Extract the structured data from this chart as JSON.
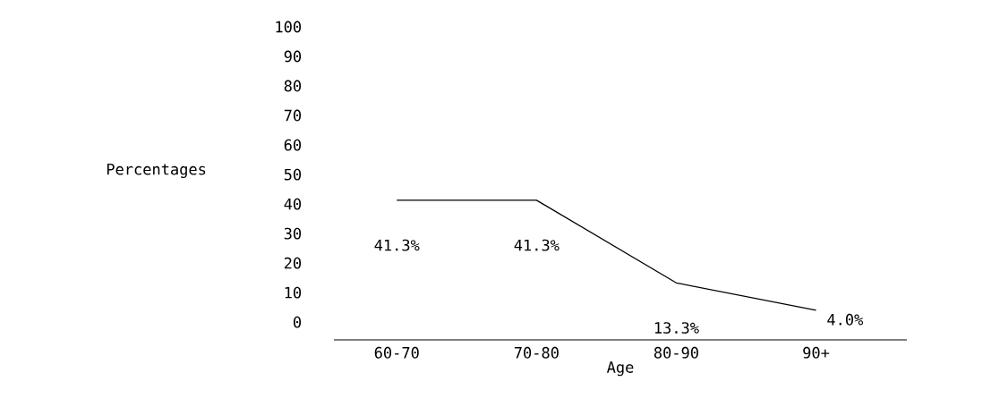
{
  "chart_data": {
    "type": "line",
    "xlabel": "Age",
    "ylabel": "Percentages",
    "categories": [
      "60-70",
      "70-80",
      "80-90",
      "90+"
    ],
    "series": [
      {
        "color": "#000000",
        "values": [
          41.3,
          41.3,
          13.3,
          4.0
        ],
        "value_labels": [
          "41.3%",
          "41.3%",
          "13.3%",
          "4.0%"
        ]
      }
    ],
    "ylim": [
      -6,
      100
    ],
    "yticks": [
      0,
      10,
      20,
      30,
      40,
      50,
      60,
      70,
      80,
      90,
      100
    ],
    "grid": false,
    "marker": "none",
    "line_style": "solid"
  }
}
